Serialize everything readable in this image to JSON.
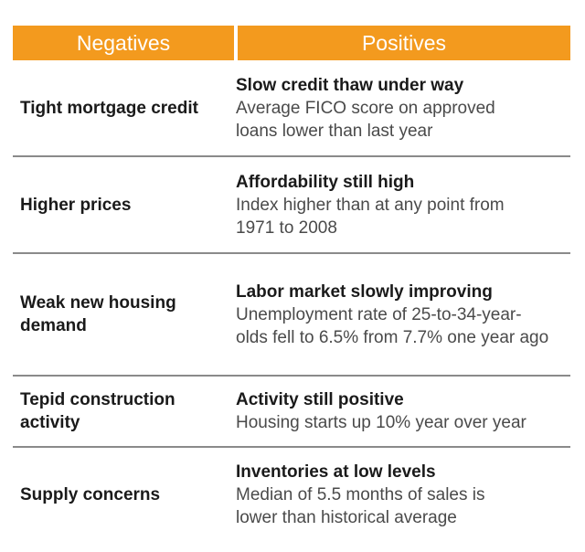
{
  "header": {
    "negatives": "Negatives",
    "positives": "Positives"
  },
  "rows": [
    {
      "negative": "Tight mortgage credit",
      "positive_title": "Slow credit thaw under way",
      "positive_desc": "Average FICO score on approved loans lower than last year"
    },
    {
      "negative": "Higher prices",
      "positive_title": "Affordability still high",
      "positive_desc": "Index higher than at any point from 1971 to 2008"
    },
    {
      "negative": "Weak new housing demand",
      "positive_title": "Labor market slowly improving",
      "positive_desc": "Unemployment rate of 25-to-34-year-olds fell to 6.5% from 7.7% one year ago"
    },
    {
      "negative": "Tepid construction activity",
      "positive_title": "Activity still positive",
      "positive_desc": "Housing starts up 10% year over year"
    },
    {
      "negative": "Supply concerns",
      "positive_title": "Inventories at low levels",
      "positive_desc": "Median of 5.5 months of sales is lower than historical average"
    }
  ],
  "colors": {
    "header_bg": "#f39a1e",
    "divider": "#8a8a8a"
  }
}
